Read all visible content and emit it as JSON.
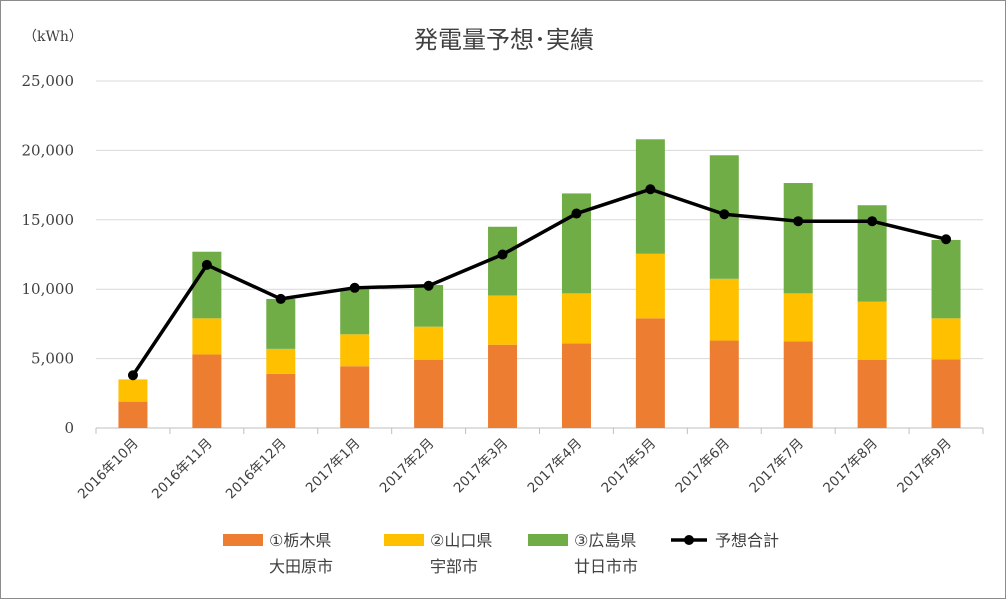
{
  "chart_data": {
    "type": "bar",
    "title": "発電量予想･実績",
    "unit_label": "（kWh）",
    "ylim": [
      0,
      25000
    ],
    "y_ticks": [
      "0",
      "5,000",
      "10,000",
      "15,000",
      "20,000",
      "25,000"
    ],
    "y_tick_values": [
      0,
      5000,
      10000,
      15000,
      20000,
      25000
    ],
    "grid": true,
    "legend_position": "bottom",
    "categories": [
      "2016年10月",
      "2016年11月",
      "2016年12月",
      "2017年1月",
      "2017年2月",
      "2017年3月",
      "2017年4月",
      "2017年5月",
      "2017年6月",
      "2017年7月",
      "2017年8月",
      "2017年9月"
    ],
    "series": [
      {
        "name_lines": [
          "①栃木県",
          "大田原市"
        ],
        "kind": "bar",
        "color": "#ED7D31",
        "values": [
          1900,
          5300,
          3900,
          4450,
          4900,
          6000,
          6100,
          7900,
          6300,
          6250,
          4900,
          4950
        ]
      },
      {
        "name_lines": [
          "②山口県",
          "宇部市"
        ],
        "kind": "bar",
        "color": "#FFC000",
        "values": [
          1600,
          2600,
          1800,
          2300,
          2400,
          3550,
          3600,
          4650,
          4450,
          3450,
          4200,
          2950
        ]
      },
      {
        "name_lines": [
          "③広島県",
          "廿日市市"
        ],
        "kind": "bar",
        "color": "#70AD47",
        "values": [
          0,
          4800,
          3600,
          3300,
          3000,
          4950,
          7200,
          8250,
          8900,
          7950,
          6950,
          5650
        ]
      },
      {
        "name_lines": [
          "予想合計"
        ],
        "kind": "line",
        "color": "#000000",
        "values": [
          3800,
          11750,
          9300,
          10100,
          10250,
          12500,
          15450,
          17200,
          15400,
          14900,
          14900,
          13600
        ]
      }
    ]
  }
}
